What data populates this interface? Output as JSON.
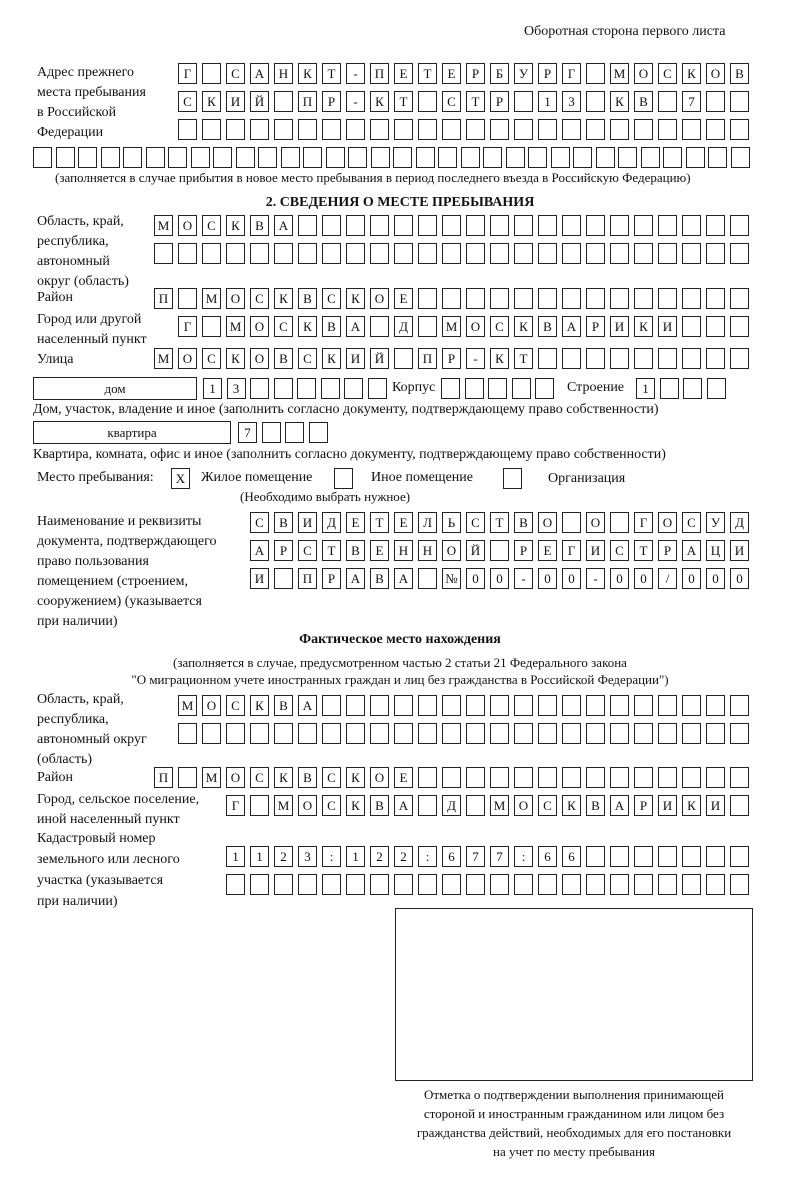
{
  "header": {
    "title": "Оборотная сторона первого листа"
  },
  "prev_address": {
    "label": [
      "Адрес прежнего",
      "места пребывания",
      "в Российской",
      "Федерации"
    ],
    "rows": [
      [
        "Г",
        "",
        "С",
        "А",
        "Н",
        "К",
        "Т",
        "-",
        "П",
        "Е",
        "Т",
        "Е",
        "Р",
        "Б",
        "У",
        "Р",
        "Г",
        "",
        "М",
        "О",
        "С",
        "К",
        "О",
        "В"
      ],
      [
        "С",
        "К",
        "И",
        "Й",
        "",
        "П",
        "Р",
        "-",
        "К",
        "Т",
        "",
        "С",
        "Т",
        "Р",
        "",
        "1",
        "3",
        "",
        "К",
        "В",
        "",
        "7",
        "",
        ""
      ],
      [
        "",
        "",
        "",
        "",
        "",
        "",
        "",
        "",
        "",
        "",
        "",
        "",
        "",
        "",
        "",
        "",
        "",
        "",
        "",
        "",
        "",
        "",
        "",
        ""
      ],
      [
        "",
        "",
        "",
        "",
        "",
        "",
        "",
        "",
        "",
        "",
        "",
        "",
        "",
        "",
        "",
        "",
        "",
        "",
        "",
        "",
        "",
        "",
        "",
        "",
        "",
        "",
        "",
        "",
        "",
        "",
        "",
        ""
      ]
    ],
    "note": "(заполняется в случае прибытия в новое место пребывания в период последнего въезда в Российскую Федерацию)"
  },
  "section2": {
    "title": "2. СВЕДЕНИЯ О МЕСТЕ ПРЕБЫВАНИЯ",
    "region": {
      "label": [
        "Область, край,",
        "республика,",
        "автономный",
        "округ (область)"
      ],
      "rows": [
        [
          "М",
          "О",
          "С",
          "К",
          "В",
          "А",
          "",
          "",
          "",
          "",
          "",
          "",
          "",
          "",
          "",
          "",
          "",
          "",
          "",
          "",
          "",
          "",
          "",
          "",
          ""
        ],
        [
          "",
          "",
          "",
          "",
          "",
          "",
          "",
          "",
          "",
          "",
          "",
          "",
          "",
          "",
          "",
          "",
          "",
          "",
          "",
          "",
          "",
          "",
          "",
          "",
          ""
        ]
      ]
    },
    "district": {
      "label": [
        "Район"
      ],
      "rows": [
        [
          "П",
          "",
          "М",
          "О",
          "С",
          "К",
          "В",
          "С",
          "К",
          "О",
          "Е",
          "",
          "",
          "",
          "",
          "",
          "",
          "",
          "",
          "",
          "",
          "",
          "",
          "",
          ""
        ]
      ]
    },
    "city": {
      "label": [
        "Город или другой",
        "населенный пункт"
      ],
      "rows": [
        [
          "Г",
          "",
          "М",
          "О",
          "С",
          "К",
          "В",
          "А",
          "",
          "Д",
          "",
          "М",
          "О",
          "С",
          "К",
          "В",
          "А",
          "Р",
          "И",
          "К",
          "И",
          "",
          "",
          ""
        ]
      ]
    },
    "street": {
      "label": [
        "Улица"
      ],
      "rows": [
        [
          "М",
          "О",
          "С",
          "К",
          "О",
          "В",
          "С",
          "К",
          "И",
          "Й",
          "",
          "П",
          "Р",
          "-",
          "К",
          "Т",
          "",
          "",
          "",
          "",
          "",
          "",
          "",
          "",
          ""
        ]
      ]
    },
    "house": {
      "type": "дом",
      "cells": [
        "1",
        "3",
        "",
        "",
        "",
        "",
        "",
        ""
      ],
      "korpus_label": "Корпус",
      "korpus_cells": [
        "",
        "",
        "",
        "",
        ""
      ],
      "building_label": "Строение",
      "building_cells": [
        "1",
        "",
        "",
        ""
      ],
      "note": "Дом, участок, владение и иное (заполнить согласно документу, подтверждающему право собственности)"
    },
    "apartment": {
      "type": "квартира",
      "cells": [
        "7",
        "",
        "",
        ""
      ],
      "note": "Квартира, комната, офис и иное (заполнить согласно документу, подтверждающему право собственности)"
    },
    "place": {
      "label": "Место пребывания:",
      "options": [
        {
          "label": "Жилое помещение",
          "mark": "X"
        },
        {
          "label": "Иное помещение",
          "mark": ""
        },
        {
          "label": "Организация",
          "mark": ""
        }
      ],
      "note": "(Необходимо выбрать нужное)"
    },
    "document": {
      "label": [
        "Наименование и реквизиты",
        "документа, подтверждающего",
        "право пользования",
        "помещением (строением,",
        "сооружением) (указывается",
        "при наличии)"
      ],
      "rows": [
        [
          "С",
          "В",
          "И",
          "Д",
          "Е",
          "Т",
          "Е",
          "Л",
          "Ь",
          "С",
          "Т",
          "В",
          "О",
          "",
          "О",
          "",
          "Г",
          "О",
          "С",
          "У",
          "Д"
        ],
        [
          "А",
          "Р",
          "С",
          "Т",
          "В",
          "Е",
          "Н",
          "Н",
          "О",
          "Й",
          "",
          "Р",
          "Е",
          "Г",
          "И",
          "С",
          "Т",
          "Р",
          "А",
          "Ц",
          "И"
        ],
        [
          "И",
          "",
          "П",
          "Р",
          "А",
          "В",
          "А",
          "",
          "№",
          "0",
          "0",
          "-",
          "0",
          "0",
          "-",
          "0",
          "0",
          "/",
          "0",
          "0",
          "0"
        ]
      ]
    }
  },
  "actual": {
    "title": "Фактическое место нахождения",
    "note": [
      "(заполняется в случае, предусмотренном частью 2 статьи 21 Федерального закона",
      "\"О миграционном учете иностранных граждан и лиц без гражданства в Российской Федерации\")"
    ],
    "region": {
      "label": [
        "Область, край,",
        "республика,",
        "автономный округ",
        "(область)"
      ],
      "rows": [
        [
          "М",
          "О",
          "С",
          "К",
          "В",
          "А",
          "",
          "",
          "",
          "",
          "",
          "",
          "",
          "",
          "",
          "",
          "",
          "",
          "",
          "",
          "",
          "",
          "",
          ""
        ],
        [
          "",
          "",
          "",
          "",
          "",
          "",
          "",
          "",
          "",
          "",
          "",
          "",
          "",
          "",
          "",
          "",
          "",
          "",
          "",
          "",
          "",
          "",
          "",
          ""
        ]
      ]
    },
    "district": {
      "label": [
        "Район"
      ],
      "rows": [
        [
          "П",
          "",
          "М",
          "О",
          "С",
          "К",
          "В",
          "С",
          "К",
          "О",
          "Е",
          "",
          "",
          "",
          "",
          "",
          "",
          "",
          "",
          "",
          "",
          "",
          "",
          "",
          ""
        ]
      ]
    },
    "city": {
      "label": [
        "Город, сельское поселение,",
        "иной населенный пункт"
      ],
      "rows": [
        [
          "Г",
          "",
          "М",
          "О",
          "С",
          "К",
          "В",
          "А",
          "",
          "Д",
          "",
          "М",
          "О",
          "С",
          "К",
          "В",
          "А",
          "Р",
          "И",
          "К",
          "И",
          ""
        ]
      ]
    },
    "cadastral": {
      "label": [
        "Кадастровый номер",
        "земельного или лесного",
        "участка (указывается",
        "при наличии)"
      ],
      "rows": [
        [
          "1",
          "1",
          "2",
          "3",
          ":",
          "1",
          "2",
          "2",
          ":",
          "6",
          "7",
          "7",
          ":",
          "6",
          "6",
          "",
          "",
          "",
          "",
          "",
          "",
          ""
        ],
        [
          "",
          "",
          "",
          "",
          "",
          "",
          "",
          "",
          "",
          "",
          "",
          "",
          "",
          "",
          "",
          "",
          "",
          "",
          "",
          "",
          "",
          ""
        ]
      ]
    }
  },
  "confirmation": {
    "caption": [
      "Отметка о подтверждении выполнения принимающей",
      "стороной и иностранным гражданином или лицом без",
      "гражданства действий, необходимых для его постановки",
      "на учет по месту пребывания"
    ]
  }
}
